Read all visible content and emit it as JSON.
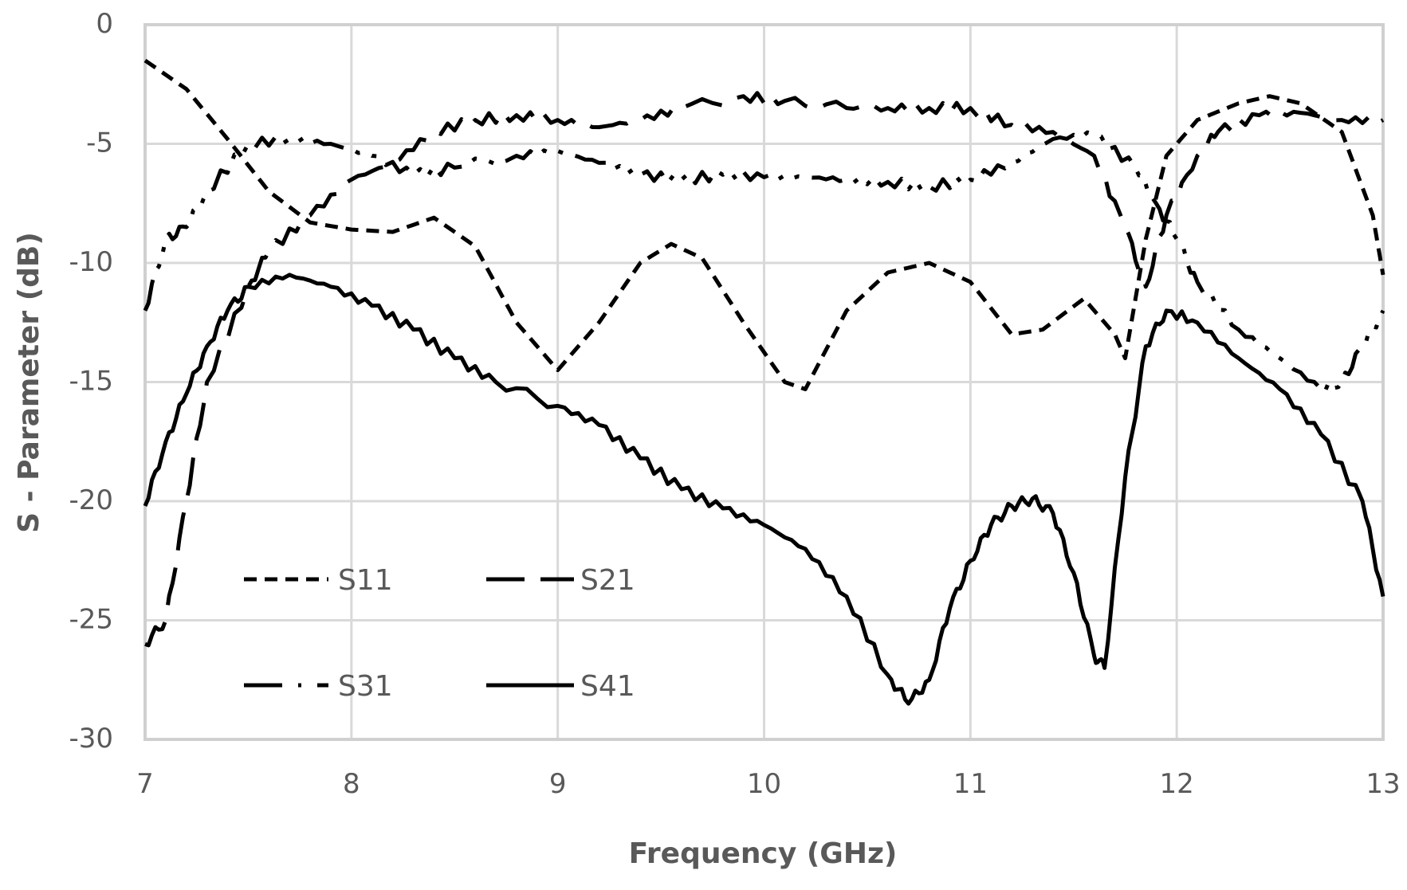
{
  "chart_data": {
    "type": "line",
    "title": "",
    "xlabel": "Frequency (GHz)",
    "ylabel": "S - Parameter (dB)",
    "xlim": [
      7,
      13
    ],
    "ylim": [
      -30,
      0
    ],
    "x_ticks": [
      "7",
      "8",
      "9",
      "10",
      "11",
      "12",
      "13"
    ],
    "y_ticks": [
      "0",
      "-5",
      "-10",
      "-15",
      "-20",
      "-25",
      "-30"
    ],
    "grid": true,
    "legend_position": "inside-lower-left",
    "series": [
      {
        "name": "S11",
        "style": "short-dash",
        "x": [
          7.0,
          7.2,
          7.4,
          7.6,
          7.8,
          8.0,
          8.2,
          8.4,
          8.6,
          8.8,
          9.0,
          9.2,
          9.4,
          9.55,
          9.7,
          9.9,
          10.1,
          10.2,
          10.4,
          10.6,
          10.8,
          11.0,
          11.2,
          11.35,
          11.55,
          11.7,
          11.75,
          11.85,
          11.95,
          12.1,
          12.3,
          12.45,
          12.6,
          12.8,
          12.95,
          13.0
        ],
        "values": [
          -1.5,
          -2.7,
          -4.8,
          -7.0,
          -8.3,
          -8.6,
          -8.7,
          -8.1,
          -9.3,
          -12.5,
          -14.5,
          -12.5,
          -10.0,
          -9.2,
          -9.8,
          -12.5,
          -15.0,
          -15.3,
          -12.0,
          -10.4,
          -10.0,
          -10.8,
          -13.0,
          -12.8,
          -11.5,
          -13.0,
          -14.0,
          -9.0,
          -5.5,
          -4.0,
          -3.3,
          -3.0,
          -3.3,
          -4.5,
          -8.0,
          -10.5
        ]
      },
      {
        "name": "S21",
        "style": "long-dash",
        "x": [
          7.0,
          7.1,
          7.2,
          7.3,
          7.5,
          7.6,
          7.8,
          8.0,
          8.2,
          8.4,
          8.6,
          8.8,
          9.0,
          9.2,
          9.4,
          9.6,
          9.9,
          10.1,
          10.4,
          10.6,
          10.8,
          11.0,
          11.2,
          11.4,
          11.6,
          11.75,
          11.85,
          11.95,
          12.1,
          12.2,
          12.4,
          12.6,
          12.8,
          13.0
        ],
        "values": [
          -26.0,
          -25.0,
          -20.0,
          -15.0,
          -11.0,
          -9.5,
          -8.0,
          -6.5,
          -5.8,
          -4.5,
          -4.0,
          -3.8,
          -4.0,
          -4.3,
          -4.0,
          -3.5,
          -3.0,
          -3.2,
          -3.5,
          -3.5,
          -3.5,
          -3.5,
          -4.2,
          -4.5,
          -5.5,
          -8.5,
          -11.0,
          -8.0,
          -5.5,
          -4.5,
          -3.8,
          -3.7,
          -4.0,
          -4.0
        ]
      },
      {
        "name": "S31",
        "style": "dash-dot-dot",
        "x": [
          7.0,
          7.1,
          7.2,
          7.3,
          7.5,
          7.7,
          7.9,
          8.1,
          8.3,
          8.5,
          8.8,
          9.0,
          9.2,
          9.4,
          9.6,
          9.8,
          10.0,
          10.2,
          10.4,
          10.6,
          10.8,
          11.0,
          11.2,
          11.4,
          11.6,
          11.8,
          11.9,
          12.0,
          12.1,
          12.3,
          12.5,
          12.7,
          12.8,
          12.9,
          13.0
        ],
        "values": [
          -12.0,
          -9.0,
          -8.5,
          -7.0,
          -5.0,
          -4.8,
          -5.0,
          -5.5,
          -6.3,
          -6.0,
          -5.5,
          -5.3,
          -5.8,
          -6.3,
          -6.5,
          -6.3,
          -6.4,
          -6.4,
          -6.5,
          -6.6,
          -6.8,
          -6.5,
          -5.8,
          -4.8,
          -4.6,
          -6.0,
          -7.5,
          -9.0,
          -10.8,
          -12.8,
          -14.0,
          -15.3,
          -15.0,
          -13.5,
          -12.0
        ]
      },
      {
        "name": "S41",
        "style": "solid",
        "x": [
          7.0,
          7.1,
          7.2,
          7.3,
          7.4,
          7.5,
          7.7,
          7.9,
          8.1,
          8.3,
          8.5,
          8.7,
          9.0,
          9.2,
          9.4,
          9.6,
          9.8,
          10.0,
          10.2,
          10.4,
          10.6,
          10.7,
          10.8,
          10.9,
          11.0,
          11.1,
          11.2,
          11.3,
          11.4,
          11.5,
          11.6,
          11.65,
          11.75,
          11.85,
          11.95,
          12.1,
          12.3,
          12.5,
          12.7,
          12.9,
          13.0
        ],
        "values": [
          -20.2,
          -17.5,
          -15.5,
          -13.5,
          -12.0,
          -11.0,
          -10.5,
          -11.0,
          -11.8,
          -12.8,
          -14.0,
          -15.0,
          -16.0,
          -16.8,
          -18.2,
          -19.5,
          -20.3,
          -21.0,
          -22.0,
          -24.0,
          -27.3,
          -28.5,
          -27.5,
          -24.5,
          -22.5,
          -21.0,
          -20.2,
          -19.9,
          -20.5,
          -23.0,
          -26.5,
          -27.0,
          -19.0,
          -13.5,
          -12.0,
          -12.5,
          -14.0,
          -15.3,
          -17.2,
          -20.0,
          -24.0
        ]
      }
    ]
  },
  "legend": {
    "items": [
      {
        "label": "S11"
      },
      {
        "label": "S21"
      },
      {
        "label": "S31"
      },
      {
        "label": "S41"
      }
    ]
  },
  "axes": {
    "x_title": "Frequency (GHz)",
    "y_title": "S - Parameter (dB)"
  },
  "colors": {
    "lines": "#000000",
    "grid": "#d9d9d9",
    "text": "#595959"
  }
}
